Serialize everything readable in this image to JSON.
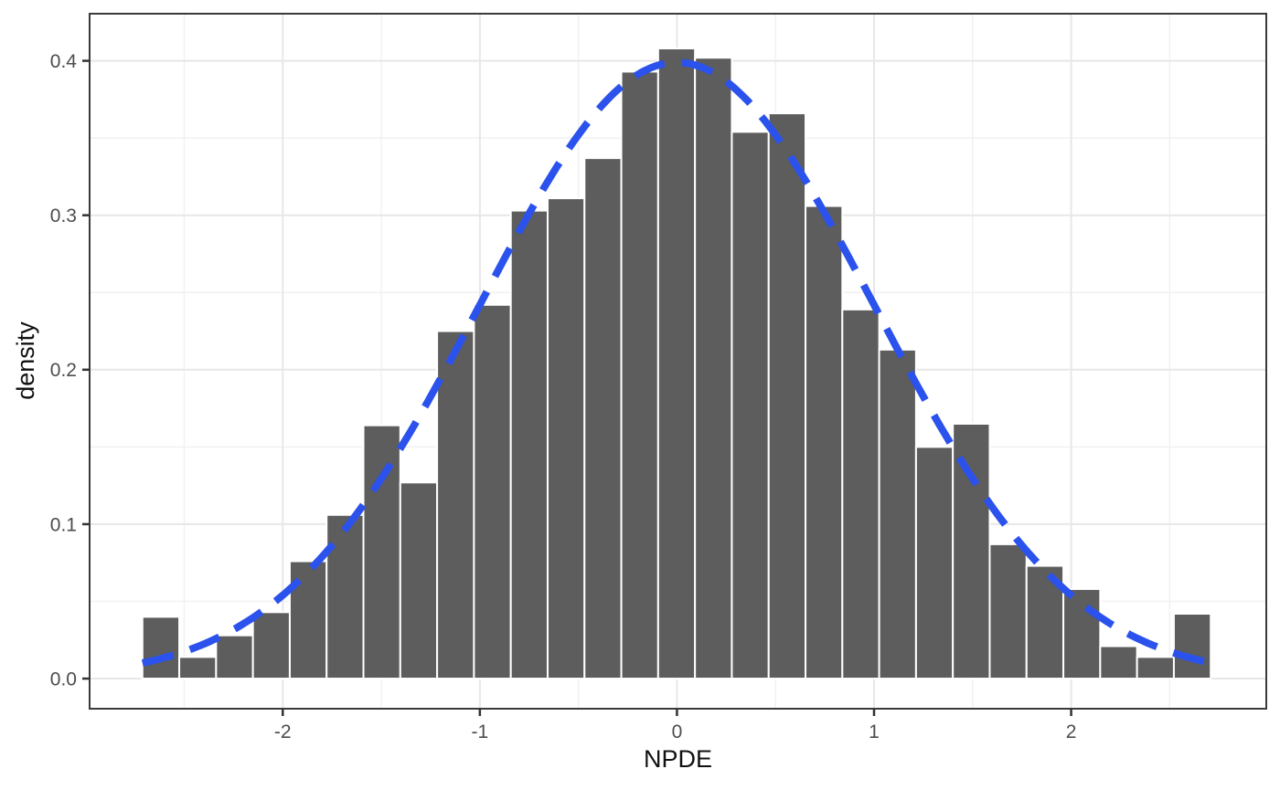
{
  "figure": {
    "background": "#ffffff"
  },
  "chart_data": {
    "type": "bar",
    "subtype": "histogram-with-density-curve",
    "title": "",
    "xlabel": "NPDE",
    "ylabel": "density",
    "x_range": [
      -2.98,
      2.99
    ],
    "y_range": [
      -0.0195,
      0.4305
    ],
    "x_ticks": [
      -2,
      -1,
      0,
      1,
      2
    ],
    "x_tick_labels": [
      "-2",
      "-1",
      "0",
      "1",
      "2"
    ],
    "x_minor_ticks": [
      -2.5,
      -1.5,
      -0.5,
      0.5,
      1.5,
      2.5
    ],
    "y_ticks": [
      0.0,
      0.1,
      0.2,
      0.3,
      0.4
    ],
    "y_tick_labels": [
      "0.0",
      "0.1",
      "0.2",
      "0.3",
      "0.4"
    ],
    "y_minor_ticks": [
      0.05,
      0.15,
      0.25,
      0.35
    ],
    "grid": "on",
    "legend_position": "none",
    "histogram": {
      "bin_start": -2.712,
      "bin_width": 0.1869,
      "densities": [
        0.04,
        0.014,
        0.028,
        0.043,
        0.076,
        0.106,
        0.164,
        0.127,
        0.225,
        0.242,
        0.303,
        0.311,
        0.337,
        0.393,
        0.408,
        0.402,
        0.354,
        0.366,
        0.306,
        0.239,
        0.213,
        0.15,
        0.165,
        0.087,
        0.073,
        0.058,
        0.021,
        0.014,
        0.042
      ],
      "bar_fill": "#5d5d5d",
      "bar_stroke": "#ffffff"
    },
    "overlay_curve": {
      "name": "standard-normal-density",
      "distribution": "normal",
      "mean": 0,
      "sd": 1,
      "x_from": -2.712,
      "x_to": 2.708,
      "color": "#2b52ec",
      "line_style": "dashed"
    },
    "theme": {
      "panel_background": "#ffffff",
      "panel_border": "#3a3a3a",
      "grid_major": "#e7e7e7",
      "grid_minor": "#f1f1f1",
      "tick_mark_color": "#333333",
      "tick_label_color": "#4d4d4d",
      "axis_title_color": "#111111"
    }
  }
}
